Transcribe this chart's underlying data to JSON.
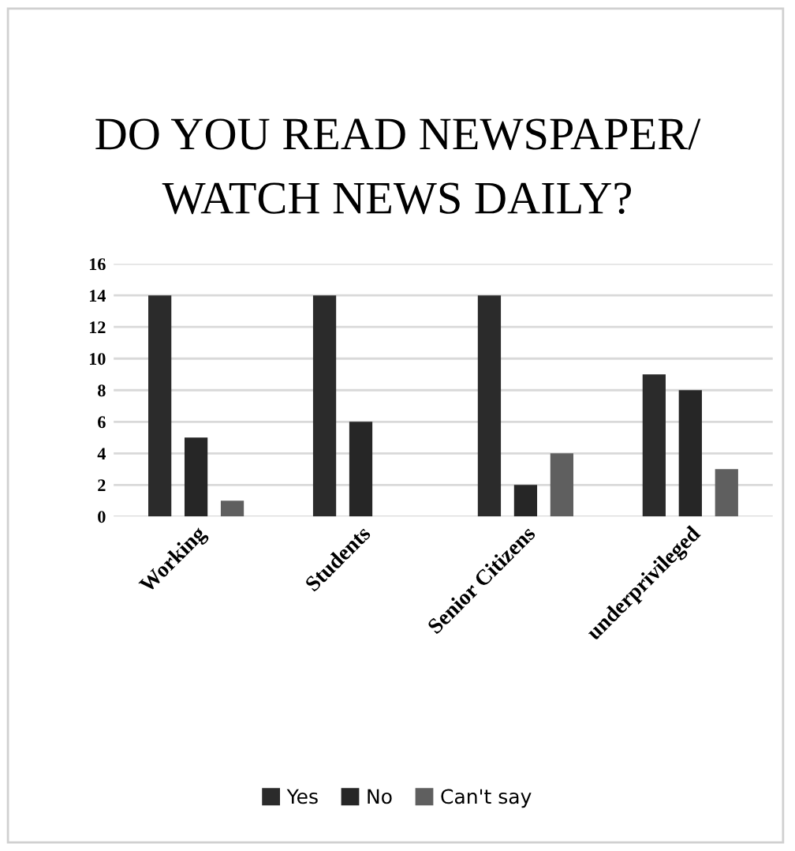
{
  "chart_data": {
    "type": "bar",
    "title": "DO YOU READ NEWSPAPER/ WATCH NEWS DAILY?",
    "categories": [
      "Working",
      "Students",
      "Senior Citizens",
      "underprivileged"
    ],
    "series": [
      {
        "name": "Yes",
        "color": "#2b2b2b",
        "values": [
          14,
          14,
          14,
          9
        ]
      },
      {
        "name": "No",
        "color": "#262626",
        "values": [
          5,
          6,
          2,
          8
        ]
      },
      {
        "name": "Can't say",
        "color": "#5f5f5f",
        "values": [
          1,
          0,
          4,
          3
        ]
      }
    ],
    "ylim": [
      0,
      16
    ],
    "yticks": [
      0,
      2,
      4,
      6,
      8,
      10,
      12,
      14,
      16
    ],
    "grid": "y",
    "legend": "bottom"
  }
}
